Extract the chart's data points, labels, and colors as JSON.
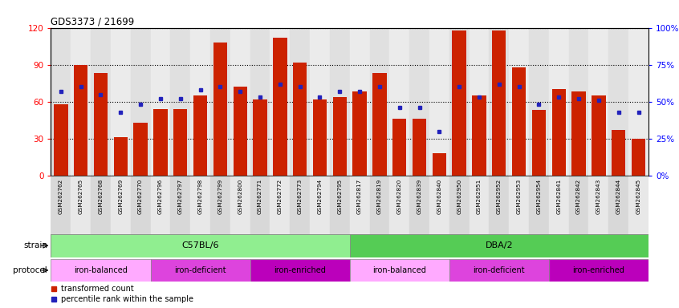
{
  "title": "GDS3373 / 21699",
  "samples": [
    "GSM262762",
    "GSM262765",
    "GSM262768",
    "GSM262769",
    "GSM262770",
    "GSM262796",
    "GSM262797",
    "GSM262798",
    "GSM262799",
    "GSM262800",
    "GSM262771",
    "GSM262772",
    "GSM262773",
    "GSM262794",
    "GSM262795",
    "GSM262817",
    "GSM262819",
    "GSM262820",
    "GSM262839",
    "GSM262840",
    "GSM262950",
    "GSM262951",
    "GSM262952",
    "GSM262953",
    "GSM262954",
    "GSM262841",
    "GSM262842",
    "GSM262843",
    "GSM262844",
    "GSM262845"
  ],
  "red_bars": [
    58,
    90,
    83,
    31,
    43,
    54,
    54,
    65,
    108,
    72,
    62,
    112,
    92,
    62,
    64,
    68,
    83,
    46,
    46,
    18,
    118,
    65,
    118,
    88,
    53,
    70,
    68,
    65,
    37,
    30
  ],
  "blue_squares": [
    57,
    60,
    55,
    43,
    48,
    52,
    52,
    58,
    60,
    57,
    53,
    62,
    60,
    53,
    57,
    57,
    60,
    46,
    46,
    30,
    60,
    53,
    62,
    60,
    48,
    53,
    52,
    51,
    43,
    43
  ],
  "ylim_left": [
    0,
    120
  ],
  "ylim_right": [
    0,
    100
  ],
  "yticks_left": [
    0,
    30,
    60,
    90,
    120
  ],
  "yticks_right": [
    0,
    25,
    50,
    75,
    100
  ],
  "ytick_labels_right": [
    "0%",
    "25%",
    "50%",
    "75%",
    "100%"
  ],
  "bar_color": "#CC2200",
  "square_color": "#2222BB",
  "strain_c57_color": "#90EE90",
  "strain_dba_color": "#55CC55",
  "strain_c57_label": "C57BL/6",
  "strain_dba_label": "DBA/2",
  "proto_balanced_color": "#FFAAFF",
  "proto_deficient_color": "#DD44DD",
  "proto_enriched_color": "#BB00BB",
  "legend_red_label": "transformed count",
  "legend_blue_label": "percentile rank within the sample",
  "n_samples": 30,
  "proto_groups": [
    [
      0,
      5,
      "iron-balanced"
    ],
    [
      5,
      10,
      "iron-deficient"
    ],
    [
      10,
      15,
      "iron-enriched"
    ],
    [
      15,
      20,
      "iron-balanced"
    ],
    [
      20,
      25,
      "iron-deficient"
    ],
    [
      25,
      30,
      "iron-enriched"
    ]
  ]
}
